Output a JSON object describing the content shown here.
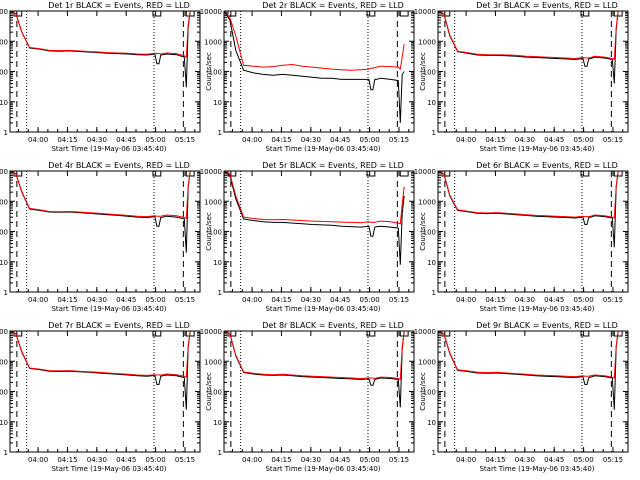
{
  "x_label": "Start Time (19-May-06 03:45:40)",
  "y_label": "Counts/sec",
  "x_tick_labels": [
    "04:00",
    "04:15",
    "04:30",
    "04:45",
    "05:00",
    "05:15"
  ],
  "y_tick_labels": [
    "1",
    "10",
    "100",
    "1000",
    "10000"
  ],
  "colors": {
    "events": "#000000",
    "lld": "#ff0000"
  },
  "chart_data": [
    {
      "type": "line",
      "title": "Det 1r BLACK = Events, RED = LLD",
      "xlabel": "Start Time (19-May-06 03:45:40)",
      "ylabel": "Counts/sec",
      "log_y": true,
      "ylim": [
        1,
        10000
      ],
      "xlim": [
        "03:45:40",
        "05:22"
      ],
      "x_ticks": [
        "04:00",
        "04:15",
        "04:30",
        "04:45",
        "05:00",
        "05:15"
      ],
      "x_minutes": [
        0,
        3,
        6,
        10,
        15,
        20,
        25,
        30,
        35,
        40,
        45,
        50,
        55,
        60,
        65,
        70,
        74,
        75,
        76,
        77,
        78,
        80,
        85,
        89,
        90,
        91,
        92
      ],
      "series": [
        {
          "name": "BLACK = Events",
          "values": [
            10000,
            8000,
            2000,
            600,
            550,
            480,
            470,
            480,
            460,
            440,
            420,
            400,
            390,
            380,
            360,
            350,
            380,
            180,
            180,
            350,
            360,
            380,
            360,
            300,
            30,
            3000,
            10000
          ]
        },
        {
          "name": "RED = LLD",
          "values": [
            10000,
            8000,
            2000,
            620,
            570,
            500,
            490,
            500,
            480,
            460,
            440,
            420,
            410,
            400,
            380,
            370,
            400,
            390,
            390,
            380,
            390,
            410,
            390,
            330,
            300,
            3500,
            10000
          ]
        }
      ]
    },
    {
      "type": "line",
      "title": "Det 2r BLACK = Events, RED = LLD",
      "xlabel": "Start Time (19-May-06 03:45:40)",
      "ylabel": "Counts/sec",
      "log_y": true,
      "ylim": [
        1,
        10000
      ],
      "xlim": [
        "03:45:40",
        "05:22"
      ],
      "x_ticks": [
        "04:00",
        "04:15",
        "04:30",
        "04:45",
        "05:00",
        "05:15"
      ],
      "x_minutes": [
        0,
        3,
        6,
        10,
        15,
        20,
        25,
        30,
        35,
        40,
        45,
        50,
        55,
        60,
        65,
        70,
        74,
        75,
        76,
        77,
        78,
        80,
        85,
        89,
        90,
        91,
        92
      ],
      "series": [
        {
          "name": "BLACK = Events",
          "values": [
            10000,
            5000,
            500,
            110,
            90,
            80,
            75,
            80,
            75,
            70,
            65,
            60,
            60,
            55,
            55,
            55,
            55,
            25,
            25,
            55,
            55,
            60,
            55,
            50,
            2,
            80,
            100
          ]
        },
        {
          "name": "RED = LLD",
          "values": [
            10000,
            6000,
            1500,
            160,
            150,
            140,
            145,
            160,
            170,
            150,
            140,
            130,
            120,
            115,
            110,
            115,
            120,
            130,
            130,
            135,
            140,
            150,
            145,
            140,
            120,
            300,
            800
          ]
        }
      ]
    },
    {
      "type": "line",
      "title": "Det 3r BLACK = Events, RED = LLD",
      "xlabel": "Start Time (19-May-06 03:45:40)",
      "ylabel": "Counts/sec",
      "log_y": true,
      "ylim": [
        1,
        10000
      ],
      "xlim": [
        "03:45:40",
        "05:22"
      ],
      "x_ticks": [
        "04:00",
        "04:15",
        "04:30",
        "04:45",
        "05:00",
        "05:15"
      ],
      "x_minutes": [
        0,
        3,
        6,
        10,
        15,
        20,
        25,
        30,
        35,
        40,
        45,
        50,
        55,
        60,
        65,
        70,
        74,
        75,
        76,
        77,
        78,
        80,
        85,
        89,
        90,
        91,
        92
      ],
      "series": [
        {
          "name": "BLACK = Events",
          "values": [
            10000,
            8000,
            1500,
            450,
            400,
            350,
            340,
            340,
            330,
            320,
            300,
            290,
            280,
            270,
            260,
            250,
            270,
            150,
            150,
            260,
            270,
            300,
            280,
            250,
            40,
            2500,
            10000
          ]
        },
        {
          "name": "RED = LLD",
          "values": [
            10000,
            8000,
            1600,
            470,
            420,
            370,
            360,
            360,
            350,
            340,
            320,
            310,
            300,
            290,
            280,
            270,
            290,
            280,
            280,
            280,
            290,
            320,
            300,
            270,
            250,
            2800,
            10000
          ]
        }
      ]
    },
    {
      "type": "line",
      "title": "Det 4r BLACK = Events, RED = LLD",
      "xlabel": "Start Time (19-May-06 03:45:40)",
      "ylabel": "Counts/sec",
      "log_y": true,
      "ylim": [
        1,
        10000
      ],
      "xlim": [
        "03:45:40",
        "05:22"
      ],
      "x_ticks": [
        "04:00",
        "04:15",
        "04:30",
        "04:45",
        "05:00",
        "05:15"
      ],
      "x_minutes": [
        0,
        3,
        6,
        10,
        15,
        20,
        25,
        30,
        35,
        40,
        45,
        50,
        55,
        60,
        65,
        70,
        74,
        75,
        76,
        77,
        78,
        80,
        85,
        89,
        90,
        91,
        92
      ],
      "series": [
        {
          "name": "BLACK = Events",
          "values": [
            10000,
            8000,
            2000,
            550,
            500,
            440,
            430,
            440,
            420,
            400,
            380,
            360,
            340,
            320,
            300,
            290,
            310,
            150,
            150,
            290,
            300,
            320,
            300,
            260,
            20,
            3000,
            10000
          ]
        },
        {
          "name": "RED = LLD",
          "values": [
            10000,
            8000,
            2100,
            580,
            520,
            460,
            450,
            460,
            440,
            420,
            400,
            380,
            360,
            340,
            320,
            310,
            330,
            320,
            320,
            320,
            330,
            350,
            330,
            290,
            270,
            3200,
            10000
          ]
        }
      ]
    },
    {
      "type": "line",
      "title": "Det 5r BLACK = Events, RED = LLD",
      "xlabel": "Start Time (19-May-06 03:45:40)",
      "ylabel": "Counts/sec",
      "log_y": true,
      "ylim": [
        1,
        10000
      ],
      "xlim": [
        "03:45:40",
        "05:22"
      ],
      "x_ticks": [
        "04:00",
        "04:15",
        "04:30",
        "04:45",
        "05:00",
        "05:15"
      ],
      "x_minutes": [
        0,
        3,
        6,
        10,
        15,
        20,
        25,
        30,
        35,
        40,
        45,
        50,
        55,
        60,
        65,
        70,
        74,
        75,
        76,
        77,
        78,
        80,
        85,
        89,
        90,
        91,
        92
      ],
      "series": [
        {
          "name": "BLACK = Events",
          "values": [
            10000,
            7000,
            1200,
            260,
            230,
            210,
            200,
            200,
            190,
            180,
            170,
            165,
            160,
            150,
            145,
            140,
            150,
            70,
            70,
            140,
            145,
            150,
            140,
            130,
            8,
            400,
            1500
          ]
        },
        {
          "name": "RED = LLD",
          "values": [
            10000,
            8000,
            1500,
            300,
            270,
            250,
            245,
            250,
            240,
            230,
            220,
            215,
            210,
            205,
            200,
            195,
            210,
            200,
            200,
            200,
            210,
            220,
            210,
            190,
            180,
            800,
            3000
          ]
        }
      ]
    },
    {
      "type": "line",
      "title": "Det 6r BLACK = Events, RED = LLD",
      "xlabel": "Start Time (19-May-06 03:45:40)",
      "ylabel": "Counts/sec",
      "log_y": true,
      "ylim": [
        1,
        10000
      ],
      "xlim": [
        "03:45:40",
        "05:22"
      ],
      "x_ticks": [
        "04:00",
        "04:15",
        "04:30",
        "04:45",
        "05:00",
        "05:15"
      ],
      "x_minutes": [
        0,
        3,
        6,
        10,
        15,
        20,
        25,
        30,
        35,
        40,
        45,
        50,
        55,
        60,
        65,
        70,
        74,
        75,
        76,
        77,
        78,
        80,
        85,
        89,
        90,
        91,
        92
      ],
      "series": [
        {
          "name": "BLACK = Events",
          "values": [
            10000,
            8000,
            1500,
            500,
            450,
            400,
            390,
            400,
            380,
            360,
            340,
            320,
            310,
            300,
            290,
            280,
            300,
            170,
            170,
            290,
            300,
            330,
            310,
            280,
            30,
            3000,
            10000
          ]
        },
        {
          "name": "RED = LLD",
          "values": [
            10000,
            8000,
            1600,
            520,
            470,
            420,
            410,
            420,
            400,
            380,
            360,
            340,
            330,
            320,
            310,
            300,
            320,
            310,
            310,
            310,
            320,
            350,
            330,
            300,
            280,
            3200,
            10000
          ]
        }
      ]
    },
    {
      "type": "line",
      "title": "Det 7r BLACK = Events, RED = LLD",
      "xlabel": "Start Time (19-May-06 03:45:40)",
      "ylabel": "Counts/sec",
      "log_y": true,
      "ylim": [
        1,
        10000
      ],
      "xlim": [
        "03:45:40",
        "05:22"
      ],
      "x_ticks": [
        "04:00",
        "04:15",
        "04:30",
        "04:45",
        "05:00",
        "05:15"
      ],
      "x_minutes": [
        0,
        3,
        6,
        10,
        15,
        20,
        25,
        30,
        35,
        40,
        45,
        50,
        55,
        60,
        65,
        70,
        74,
        75,
        76,
        77,
        78,
        80,
        85,
        89,
        90,
        91,
        92
      ],
      "series": [
        {
          "name": "BLACK = Events",
          "values": [
            10000,
            8000,
            2000,
            580,
            530,
            470,
            460,
            470,
            450,
            430,
            410,
            390,
            370,
            350,
            330,
            320,
            340,
            170,
            170,
            320,
            330,
            350,
            330,
            290,
            25,
            3000,
            10000
          ]
        },
        {
          "name": "RED = LLD",
          "values": [
            10000,
            8000,
            2100,
            600,
            550,
            490,
            480,
            490,
            470,
            450,
            430,
            410,
            390,
            370,
            350,
            340,
            360,
            350,
            350,
            350,
            360,
            380,
            360,
            320,
            300,
            3200,
            10000
          ]
        }
      ]
    },
    {
      "type": "line",
      "title": "Det 8r BLACK = Events, RED = LLD",
      "xlabel": "Start Time (19-May-06 03:45:40)",
      "ylabel": "Counts/sec",
      "log_y": true,
      "ylim": [
        1,
        10000
      ],
      "xlim": [
        "03:45:40",
        "05:22"
      ],
      "x_ticks": [
        "04:00",
        "04:15",
        "04:30",
        "04:45",
        "05:00",
        "05:15"
      ],
      "x_minutes": [
        0,
        3,
        6,
        10,
        15,
        20,
        25,
        30,
        35,
        40,
        45,
        50,
        55,
        60,
        65,
        70,
        74,
        75,
        76,
        77,
        78,
        80,
        85,
        89,
        90,
        91,
        92
      ],
      "series": [
        {
          "name": "BLACK = Events",
          "values": [
            10000,
            8000,
            1500,
            420,
            380,
            350,
            340,
            350,
            330,
            310,
            300,
            290,
            280,
            270,
            260,
            250,
            260,
            160,
            160,
            250,
            260,
            280,
            270,
            250,
            30,
            2500,
            10000
          ]
        },
        {
          "name": "RED = LLD",
          "values": [
            10000,
            8000,
            1600,
            440,
            400,
            370,
            360,
            370,
            350,
            330,
            320,
            310,
            300,
            290,
            280,
            270,
            280,
            280,
            280,
            270,
            280,
            300,
            290,
            270,
            250,
            2800,
            10000
          ]
        }
      ]
    },
    {
      "type": "line",
      "title": "Det 9r BLACK = Events, RED = LLD",
      "xlabel": "Start Time (19-May-06 03:45:40)",
      "ylabel": "Counts/sec",
      "log_y": true,
      "ylim": [
        1,
        10000
      ],
      "xlim": [
        "03:45:40",
        "05:22"
      ],
      "x_ticks": [
        "04:00",
        "04:15",
        "04:30",
        "04:45",
        "05:00",
        "05:15"
      ],
      "x_minutes": [
        0,
        3,
        6,
        10,
        15,
        20,
        25,
        30,
        35,
        40,
        45,
        50,
        55,
        60,
        65,
        70,
        74,
        75,
        76,
        77,
        78,
        80,
        85,
        89,
        90,
        91,
        92
      ],
      "series": [
        {
          "name": "BLACK = Events",
          "values": [
            10000,
            8000,
            1800,
            500,
            460,
            410,
            400,
            410,
            390,
            370,
            350,
            330,
            320,
            310,
            300,
            290,
            310,
            170,
            170,
            290,
            300,
            330,
            310,
            280,
            25,
            3000,
            10000
          ]
        },
        {
          "name": "RED = LLD",
          "values": [
            10000,
            8000,
            1900,
            520,
            480,
            430,
            420,
            430,
            410,
            390,
            370,
            350,
            340,
            330,
            320,
            310,
            330,
            320,
            320,
            320,
            330,
            350,
            330,
            300,
            280,
            3200,
            10000
          ]
        }
      ]
    }
  ]
}
